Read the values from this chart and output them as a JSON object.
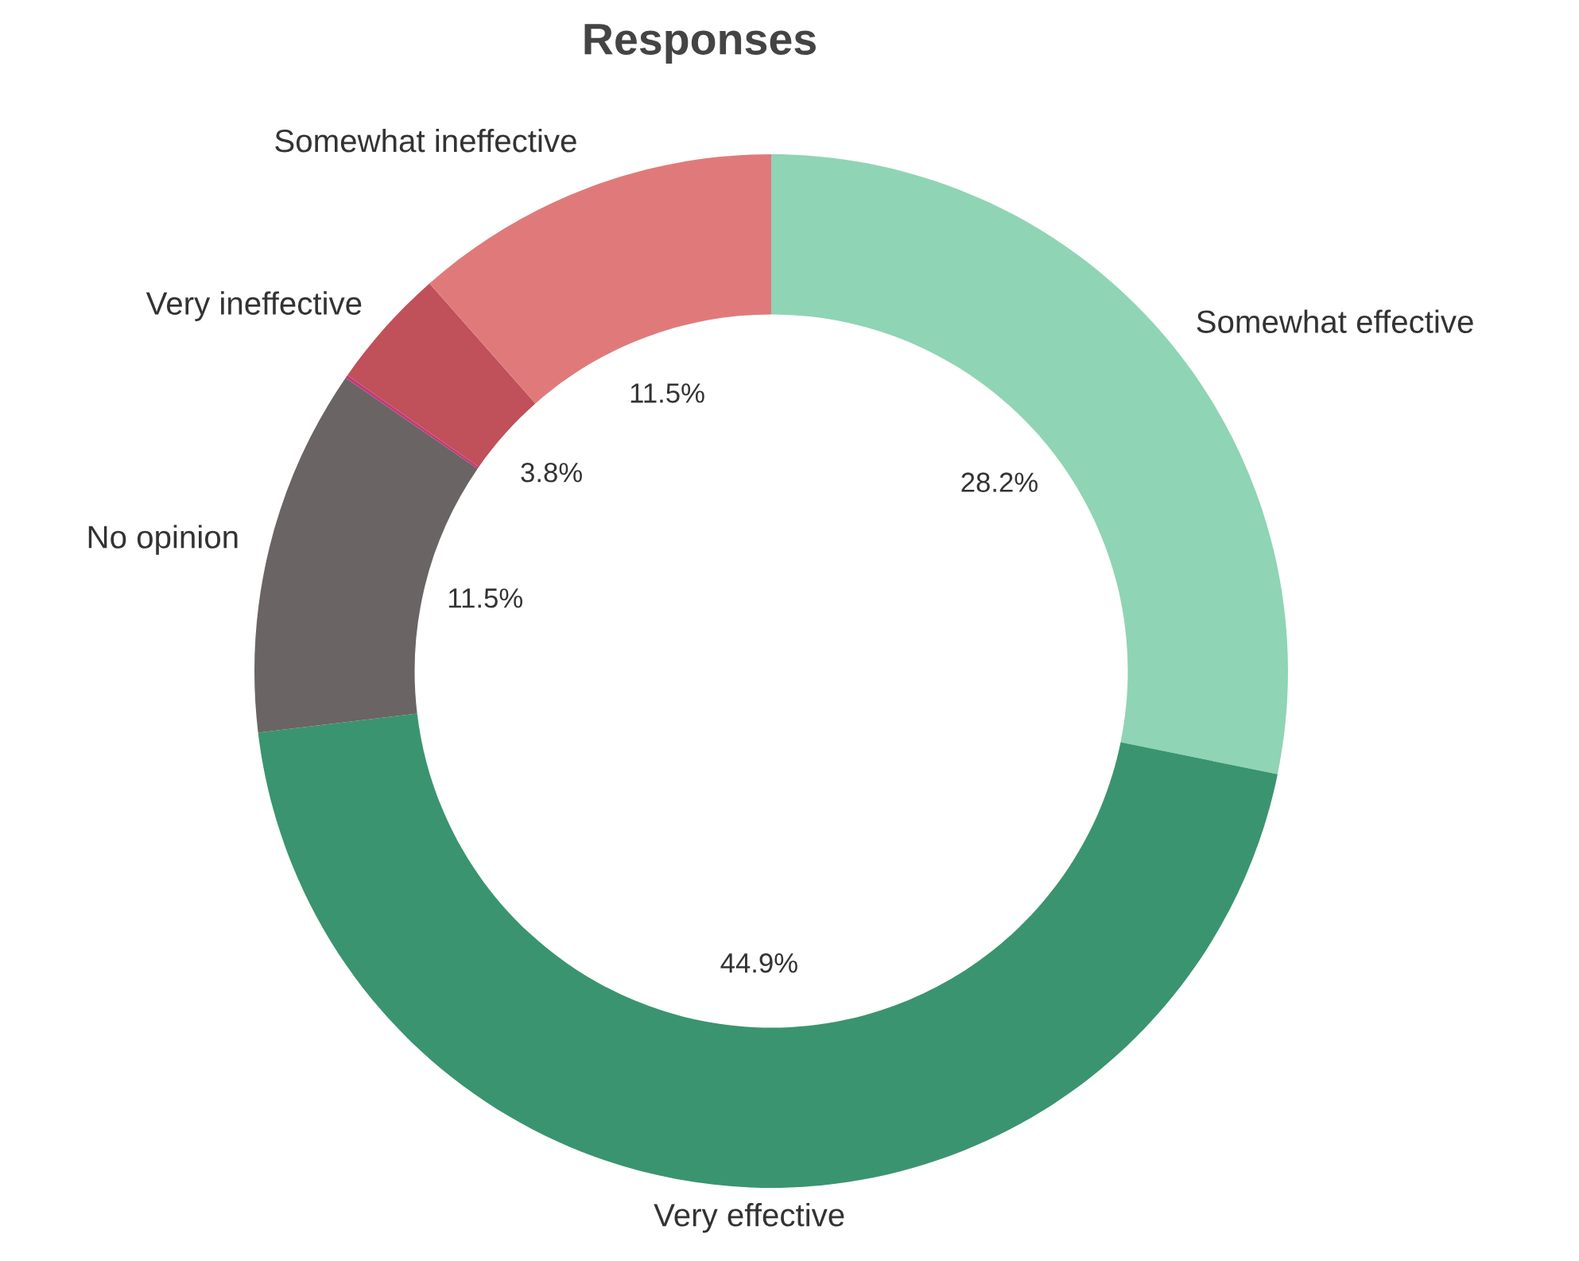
{
  "chart_data": {
    "type": "donut",
    "title": "Responses",
    "categories": [
      "Somewhat effective",
      "Very effective",
      "No opinion",
      null,
      "Very ineffective",
      "Somewhat ineffective"
    ],
    "values": [
      28.2,
      44.9,
      11.5,
      0.1,
      3.8,
      11.5
    ],
    "colors": [
      "#8fd4b5",
      "#3a9470",
      "#6a6465",
      "#c23b78",
      "#c0505a",
      "#e07a7a"
    ],
    "value_labels": [
      "28.2%",
      "44.9%",
      "11.5%",
      null,
      "3.8%",
      "11.5%"
    ]
  }
}
